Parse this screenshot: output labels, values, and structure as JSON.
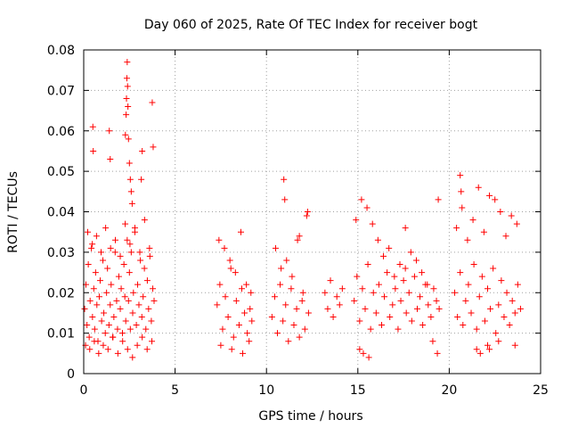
{
  "chart_data": {
    "type": "scatter",
    "title": "Day 060 of 2025, Rate Of TEC Index for receiver bogt",
    "xlabel": "GPS time / hours",
    "ylabel": "ROTI / TECUs",
    "xlim": [
      0,
      25
    ],
    "ylim": [
      0,
      0.08
    ],
    "xticks": [
      0,
      5,
      10,
      15,
      20,
      25
    ],
    "xtick_labels": [
      "0",
      "5",
      "10",
      "15",
      "20",
      "25"
    ],
    "yticks": [
      0,
      0.01,
      0.02,
      0.03,
      0.04,
      0.05,
      0.06,
      0.07,
      0.08
    ],
    "ytick_labels": [
      "0",
      "0.01",
      "0.02",
      "0.03",
      "0.04",
      "0.05",
      "0.06",
      "0.07",
      "0.08"
    ],
    "grid": true,
    "marker": "+",
    "marker_color": "#ff0000",
    "axes_color": "#000000",
    "grid_color": "#a0a0a0",
    "series": [
      {
        "x": [
          0.05,
          0.12,
          0.18,
          0.25,
          0.3,
          0.35,
          0.42,
          0.48,
          0.55,
          0.6,
          0.65,
          0.72,
          0.78,
          0.85,
          0.9,
          0.98,
          1.05,
          1.1,
          1.18,
          1.25,
          1.3,
          1.38,
          1.45,
          1.5,
          1.58,
          1.65,
          1.72,
          1.8,
          1.85,
          1.92,
          2.0,
          2.05,
          2.12,
          2.2,
          2.25,
          2.3,
          2.38,
          2.45,
          2.5,
          2.55,
          2.6,
          2.68,
          2.72,
          2.8,
          2.88,
          2.95,
          3.02,
          3.1,
          3.18,
          3.25,
          3.32,
          3.4,
          3.48,
          3.55,
          3.62,
          3.7,
          3.78,
          3.85,
          0.1,
          0.22,
          0.33,
          0.47,
          0.58,
          0.7,
          0.82,
          0.95,
          1.07,
          1.2,
          1.33,
          1.47,
          1.6,
          1.73,
          1.87,
          2.0,
          2.13,
          2.27,
          2.4,
          2.53,
          2.67,
          2.8,
          2.93,
          3.07,
          3.2,
          3.33,
          3.47,
          3.6,
          3.73,
          0.5,
          0.52,
          1.4,
          1.45,
          2.28,
          2.32,
          2.34,
          2.36,
          2.38,
          2.4,
          2.42,
          2.45,
          2.5,
          2.55,
          2.6,
          2.65,
          3.15,
          3.2,
          3.75,
          3.8,
          7.3,
          7.45,
          7.6,
          7.75,
          7.9,
          8.05,
          8.2,
          8.35,
          8.5,
          8.65,
          8.8,
          8.95,
          9.1,
          9.2,
          7.4,
          7.7,
          8.0,
          8.3,
          8.6,
          8.9,
          9.15,
          7.5,
          8.1,
          8.7,
          9.05,
          10.3,
          10.45,
          10.6,
          10.75,
          10.9,
          11.05,
          11.2,
          11.35,
          11.5,
          11.65,
          11.8,
          11.95,
          12.1,
          12.3,
          10.5,
          10.8,
          11.1,
          11.4,
          11.7,
          12.0,
          12.25,
          10.95,
          11.0,
          11.8,
          12.2,
          13.2,
          13.35,
          13.5,
          13.65,
          13.85,
          14.0,
          14.15,
          14.8,
          14.95,
          15.1,
          15.25,
          15.4,
          15.55,
          15.7,
          15.85,
          16.0,
          16.15,
          16.3,
          16.45,
          16.6,
          16.75,
          16.9,
          17.05,
          17.2,
          17.35,
          17.5,
          17.65,
          17.8,
          17.95,
          18.1,
          18.25,
          18.4,
          18.55,
          18.7,
          18.85,
          19.0,
          19.15,
          19.3,
          19.45,
          14.9,
          15.2,
          15.5,
          15.8,
          16.1,
          16.4,
          16.7,
          17.0,
          17.3,
          17.6,
          17.9,
          18.2,
          18.5,
          18.8,
          19.1,
          19.4,
          15.1,
          15.3,
          15.6,
          19.35,
          17.6,
          20.3,
          20.45,
          20.6,
          20.75,
          20.9,
          21.05,
          21.2,
          21.35,
          21.5,
          21.65,
          21.8,
          21.95,
          22.1,
          22.25,
          22.4,
          22.55,
          22.7,
          22.85,
          23.0,
          23.15,
          23.3,
          23.45,
          23.6,
          23.75,
          23.9,
          20.4,
          20.7,
          21.0,
          21.3,
          21.6,
          21.9,
          22.2,
          22.5,
          22.8,
          23.1,
          23.4,
          23.7,
          20.6,
          20.65,
          21.5,
          21.7,
          22.1,
          22.2,
          22.7,
          23.6
        ],
        "y": [
          0.016,
          0.022,
          0.012,
          0.027,
          0.009,
          0.018,
          0.031,
          0.014,
          0.021,
          0.011,
          0.025,
          0.017,
          0.008,
          0.019,
          0.023,
          0.013,
          0.028,
          0.015,
          0.01,
          0.02,
          0.026,
          0.012,
          0.017,
          0.022,
          0.009,
          0.014,
          0.03,
          0.018,
          0.011,
          0.024,
          0.016,
          0.021,
          0.01,
          0.027,
          0.019,
          0.013,
          0.033,
          0.018,
          0.025,
          0.011,
          0.03,
          0.015,
          0.02,
          0.036,
          0.012,
          0.022,
          0.017,
          0.028,
          0.014,
          0.019,
          0.026,
          0.011,
          0.023,
          0.016,
          0.029,
          0.013,
          0.021,
          0.018,
          0.007,
          0.035,
          0.006,
          0.032,
          0.008,
          0.034,
          0.005,
          0.03,
          0.007,
          0.036,
          0.006,
          0.031,
          0.009,
          0.033,
          0.005,
          0.029,
          0.008,
          0.037,
          0.006,
          0.032,
          0.004,
          0.035,
          0.007,
          0.03,
          0.009,
          0.038,
          0.006,
          0.031,
          0.008,
          0.061,
          0.055,
          0.06,
          0.053,
          0.059,
          0.064,
          0.068,
          0.073,
          0.077,
          0.071,
          0.066,
          0.058,
          0.052,
          0.048,
          0.045,
          0.042,
          0.048,
          0.055,
          0.067,
          0.056,
          0.017,
          0.022,
          0.011,
          0.019,
          0.014,
          0.026,
          0.009,
          0.018,
          0.012,
          0.021,
          0.015,
          0.01,
          0.016,
          0.013,
          0.033,
          0.031,
          0.028,
          0.025,
          0.035,
          0.022,
          0.02,
          0.007,
          0.006,
          0.005,
          0.008,
          0.014,
          0.019,
          0.01,
          0.022,
          0.013,
          0.017,
          0.008,
          0.021,
          0.012,
          0.016,
          0.009,
          0.018,
          0.011,
          0.015,
          0.031,
          0.026,
          0.028,
          0.024,
          0.033,
          0.02,
          0.04,
          0.048,
          0.043,
          0.034,
          0.039,
          0.02,
          0.016,
          0.023,
          0.014,
          0.019,
          0.017,
          0.021,
          0.018,
          0.024,
          0.013,
          0.021,
          0.016,
          0.027,
          0.011,
          0.02,
          0.015,
          0.022,
          0.012,
          0.019,
          0.025,
          0.014,
          0.017,
          0.021,
          0.011,
          0.018,
          0.023,
          0.015,
          0.02,
          0.013,
          0.024,
          0.016,
          0.019,
          0.012,
          0.022,
          0.017,
          0.014,
          0.021,
          0.018,
          0.016,
          0.038,
          0.043,
          0.041,
          0.037,
          0.033,
          0.029,
          0.031,
          0.024,
          0.027,
          0.026,
          0.03,
          0.028,
          0.025,
          0.022,
          0.008,
          0.043,
          0.006,
          0.005,
          0.004,
          0.005,
          0.036,
          0.02,
          0.014,
          0.025,
          0.012,
          0.018,
          0.022,
          0.015,
          0.027,
          0.011,
          0.019,
          0.024,
          0.013,
          0.021,
          0.016,
          0.026,
          0.01,
          0.017,
          0.023,
          0.014,
          0.02,
          0.012,
          0.018,
          0.015,
          0.022,
          0.016,
          0.036,
          0.041,
          0.033,
          0.038,
          0.046,
          0.035,
          0.044,
          0.043,
          0.04,
          0.034,
          0.039,
          0.037,
          0.049,
          0.045,
          0.006,
          0.005,
          0.007,
          0.006,
          0.008,
          0.007
        ]
      }
    ]
  }
}
